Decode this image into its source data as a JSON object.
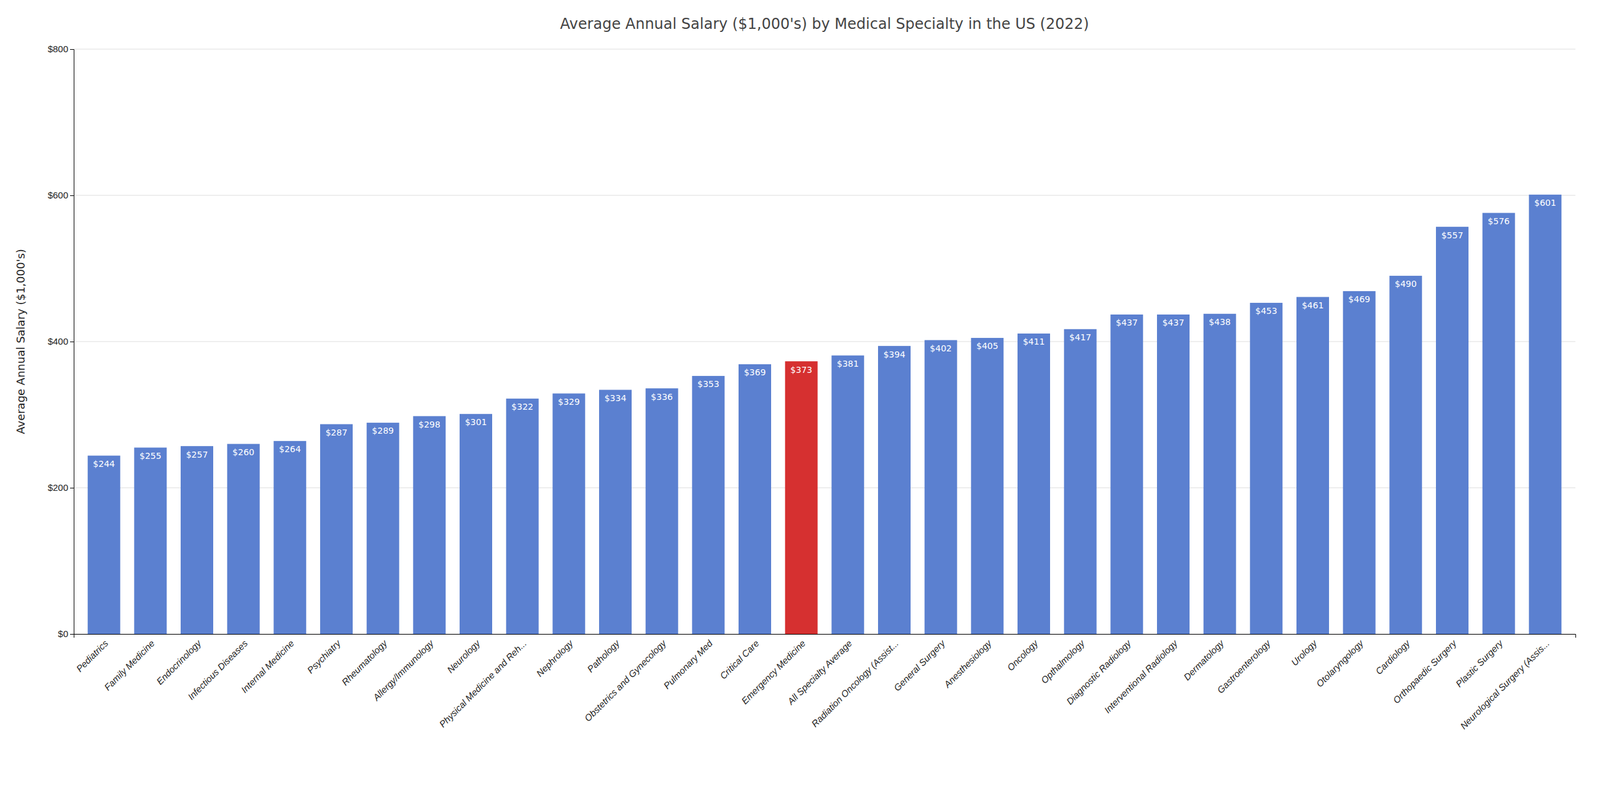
{
  "chart_data": {
    "type": "bar",
    "title": "Average Annual Salary ($1,000's) by Medical Specialty in the US (2022)",
    "ylabel": "Average Annual Salary ($1,000's)",
    "categories": [
      "Pediatrics",
      "Family Medicine",
      "Endocrinology",
      "Infectious Diseases",
      "Internal Medicine",
      "Psychiatry",
      "Rheumatology",
      "Allergy/Immunology",
      "Neurology",
      "Physical Medicine and Reh...",
      "Nephrology",
      "Pathology",
      "Obstetrics and Gynecology",
      "Pulmonary Med",
      "Critical Care",
      "Emergency Medicine",
      "All Specialty Average",
      "Radiation Oncology (Assist...",
      "General Surgery",
      "Anesthesiology",
      "Oncology",
      "Opthalmology",
      "Diagnostic Radiology",
      "Interventional Radiology",
      "Dermatology",
      "Gastroenterology",
      "Urology",
      "Otolaryngology",
      "Cardiology",
      "Orthopaedic Surgery",
      "Plastic Surgery",
      "Neurological Surgery (Assis..."
    ],
    "values": [
      244,
      255,
      257,
      260,
      264,
      287,
      289,
      298,
      301,
      322,
      329,
      334,
      336,
      353,
      369,
      373,
      381,
      394,
      402,
      405,
      411,
      417,
      437,
      437,
      438,
      453,
      461,
      469,
      490,
      557,
      576,
      601
    ],
    "value_labels": [
      "$244",
      "$255",
      "$257",
      "$260",
      "$264",
      "$287",
      "$289",
      "$298",
      "$301",
      "$322",
      "$329",
      "$334",
      "$336",
      "$353",
      "$369",
      "$373",
      "$381",
      "$394",
      "$402",
      "$405",
      "$411",
      "$417",
      "$437",
      "$437",
      "$438",
      "$453",
      "$461",
      "$469",
      "$490",
      "$557",
      "$576",
      "$601"
    ],
    "colors": [
      "#5b80d0",
      "#5b80d0",
      "#5b80d0",
      "#5b80d0",
      "#5b80d0",
      "#5b80d0",
      "#5b80d0",
      "#5b80d0",
      "#5b80d0",
      "#5b80d0",
      "#5b80d0",
      "#5b80d0",
      "#5b80d0",
      "#5b80d0",
      "#5b80d0",
      "#d63030",
      "#5b80d0",
      "#5b80d0",
      "#5b80d0",
      "#5b80d0",
      "#5b80d0",
      "#5b80d0",
      "#5b80d0",
      "#5b80d0",
      "#5b80d0",
      "#5b80d0",
      "#5b80d0",
      "#5b80d0",
      "#5b80d0",
      "#5b80d0",
      "#5b80d0",
      "#5b80d0"
    ],
    "ylim": [
      0,
      800
    ],
    "yticks": [
      {
        "value": 0,
        "label": "$0"
      },
      {
        "value": 200,
        "label": "$200"
      },
      {
        "value": 400,
        "label": "$400"
      },
      {
        "value": 600,
        "label": "$600"
      },
      {
        "value": 800,
        "label": "$800"
      }
    ],
    "grid": true
  }
}
